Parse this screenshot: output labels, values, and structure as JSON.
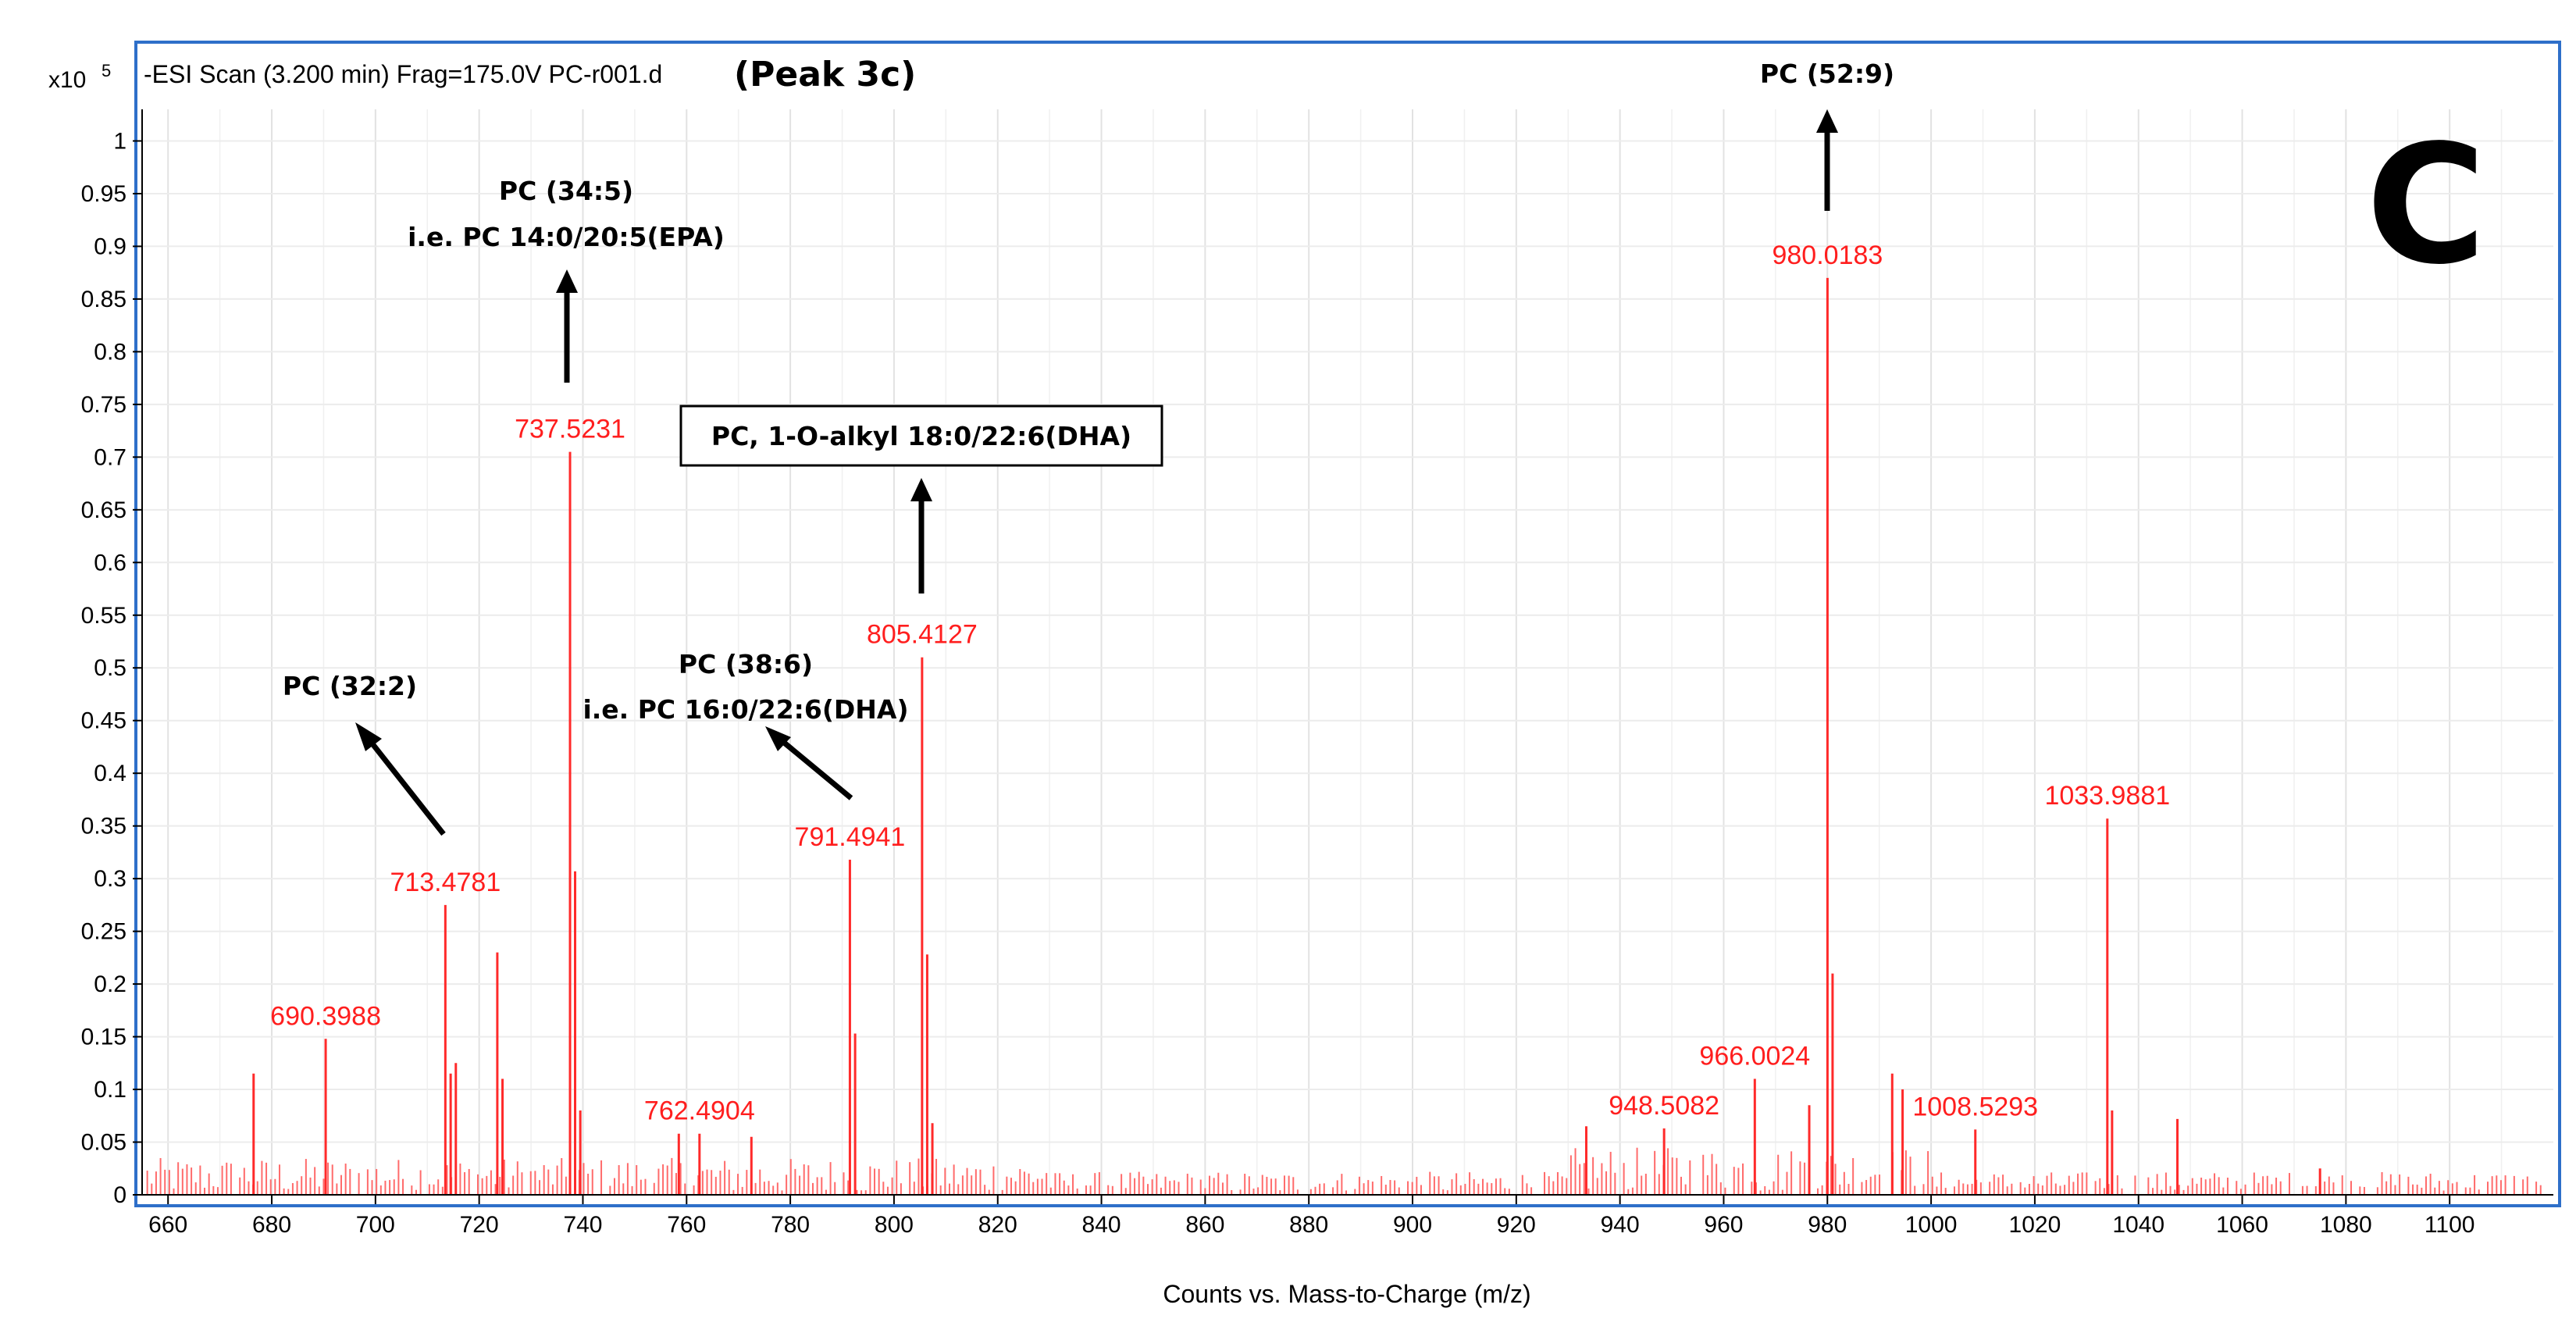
{
  "chart_data": {
    "type": "bar",
    "header": "-ESI Scan (3.200 min) Frag=175.0V PC-r001.d",
    "peak_label": "(Peak 3c)",
    "panel_letter": "C",
    "y_exponent_base": "x10",
    "y_exponent_power": "5",
    "xlabel": "Counts vs. Mass-to-Charge (m/z)",
    "xlim": [
      655,
      1120
    ],
    "ylim": [
      0,
      1.03
    ],
    "x_ticks": [
      660,
      680,
      700,
      720,
      740,
      760,
      780,
      800,
      820,
      840,
      860,
      880,
      900,
      920,
      940,
      960,
      980,
      1000,
      1020,
      1040,
      1060,
      1080,
      1100
    ],
    "y_ticks": [
      0,
      0.05,
      0.1,
      0.15,
      0.2,
      0.25,
      0.3,
      0.35,
      0.4,
      0.45,
      0.5,
      0.55,
      0.6,
      0.65,
      0.7,
      0.75,
      0.8,
      0.85,
      0.9,
      0.95,
      1
    ],
    "y_tick_labels": [
      "0",
      "0.05",
      "0.1",
      "0.15",
      "0.2",
      "0.25",
      "0.3",
      "0.35",
      "0.4",
      "0.45",
      "0.5",
      "0.55",
      "0.6",
      "0.65",
      "0.7",
      "0.75",
      "0.8",
      "0.85",
      "0.9",
      "0.95",
      "1"
    ],
    "peaks": [
      {
        "mz": 676.5,
        "intensity": 0.115
      },
      {
        "mz": 690.3988,
        "intensity": 0.148,
        "label": "690.3988"
      },
      {
        "mz": 713.4781,
        "intensity": 0.275,
        "label": "713.4781"
      },
      {
        "mz": 714.5,
        "intensity": 0.115
      },
      {
        "mz": 715.5,
        "intensity": 0.125
      },
      {
        "mz": 723.5,
        "intensity": 0.23
      },
      {
        "mz": 724.5,
        "intensity": 0.11
      },
      {
        "mz": 737.5231,
        "intensity": 0.705,
        "label": "737.5231"
      },
      {
        "mz": 738.5,
        "intensity": 0.307
      },
      {
        "mz": 739.5,
        "intensity": 0.08
      },
      {
        "mz": 758.5,
        "intensity": 0.058
      },
      {
        "mz": 762.4904,
        "intensity": 0.058,
        "label": "762.4904"
      },
      {
        "mz": 772.5,
        "intensity": 0.055
      },
      {
        "mz": 791.4941,
        "intensity": 0.318,
        "label": "791.4941"
      },
      {
        "mz": 792.5,
        "intensity": 0.153
      },
      {
        "mz": 805.4127,
        "intensity": 0.51,
        "label": "805.4127"
      },
      {
        "mz": 806.4,
        "intensity": 0.228
      },
      {
        "mz": 807.4,
        "intensity": 0.068
      },
      {
        "mz": 933.5,
        "intensity": 0.065
      },
      {
        "mz": 948.5082,
        "intensity": 0.063,
        "label": "948.5082"
      },
      {
        "mz": 966.0024,
        "intensity": 0.11,
        "label": "966.0024"
      },
      {
        "mz": 976.5,
        "intensity": 0.085
      },
      {
        "mz": 980.0183,
        "intensity": 0.87,
        "label": "980.0183"
      },
      {
        "mz": 981.0,
        "intensity": 0.21
      },
      {
        "mz": 992.5,
        "intensity": 0.115
      },
      {
        "mz": 994.5,
        "intensity": 0.1
      },
      {
        "mz": 1008.5293,
        "intensity": 0.062,
        "label": "1008.5293"
      },
      {
        "mz": 1033.9881,
        "intensity": 0.357,
        "label": "1033.9881"
      },
      {
        "mz": 1034.9,
        "intensity": 0.08
      },
      {
        "mz": 1047.5,
        "intensity": 0.072
      },
      {
        "mz": 1075.0,
        "intensity": 0.025
      }
    ],
    "annotations": [
      {
        "lines": [
          "PC (32:2)"
        ]
      },
      {
        "lines": [
          "PC (34:5)",
          "i.e. PC 14:0/20:5(EPA)"
        ]
      },
      {
        "lines": [
          "PC, 1-O-alkyl 18:0/22:6(DHA)"
        ],
        "boxed": true
      },
      {
        "lines": [
          "PC (38:6)",
          "i.e. PC 16:0/22:6(DHA)"
        ]
      },
      {
        "lines": [
          "PC (52:9)"
        ]
      }
    ]
  }
}
